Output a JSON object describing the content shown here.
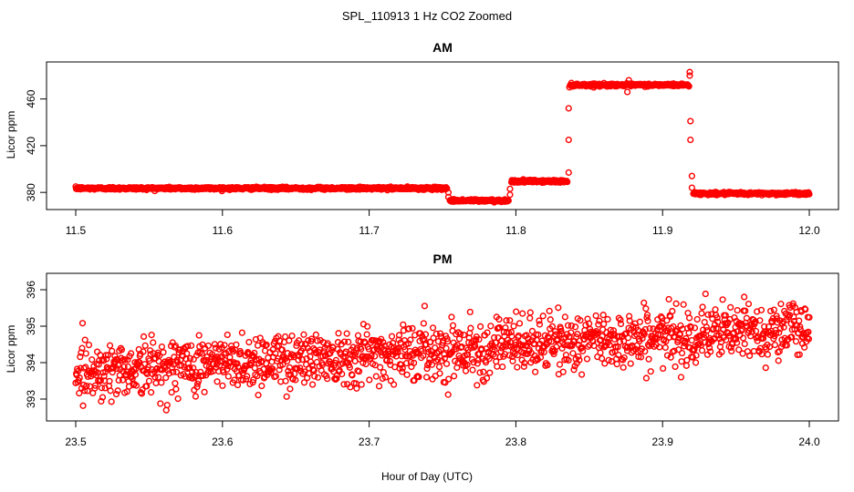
{
  "chart_data": {
    "title": "SPL_110913  1 Hz CO2 Zoomed",
    "xlabel": "Hour of Day (UTC)",
    "marker_color": "#ff0000",
    "panels": [
      {
        "type": "scatter",
        "title": "AM",
        "ylabel": "Licor ppm",
        "xlim": [
          11.5,
          12.0
        ],
        "ylim": [
          370,
          487
        ],
        "xticks": [
          11.5,
          11.6,
          11.7,
          11.8,
          11.9,
          12.0
        ],
        "xtick_labels": [
          "11.5",
          "11.6",
          "11.7",
          "11.8",
          "11.9",
          "12.0"
        ],
        "yticks": [
          380,
          420,
          460
        ],
        "ytick_labels": [
          "380",
          "420",
          "460"
        ],
        "segments": [
          {
            "x_start": 11.5,
            "x_end": 11.753,
            "level": 383.5
          },
          {
            "x_start": 11.755,
            "x_end": 11.795,
            "level": 373
          },
          {
            "x_start": 11.797,
            "x_end": 11.835,
            "level": 389.5
          },
          {
            "x_start": 11.837,
            "x_end": 11.918,
            "level": 472
          },
          {
            "x_start": 11.921,
            "x_end": 12.0,
            "level": 379
          }
        ],
        "transitions": [
          {
            "x": 11.754,
            "y": 380
          },
          {
            "x": 11.754,
            "y": 376
          },
          {
            "x": 11.796,
            "y": 378
          },
          {
            "x": 11.796,
            "y": 383
          },
          {
            "x": 11.836,
            "y": 397
          },
          {
            "x": 11.836,
            "y": 425
          },
          {
            "x": 11.836,
            "y": 452
          },
          {
            "x": 11.8365,
            "y": 470
          },
          {
            "x": 11.919,
            "y": 441
          },
          {
            "x": 11.919,
            "y": 425
          },
          {
            "x": 11.92,
            "y": 394
          },
          {
            "x": 11.92,
            "y": 384
          },
          {
            "x": 11.9185,
            "y": 480
          },
          {
            "x": 11.9185,
            "y": 483
          },
          {
            "x": 11.877,
            "y": 476
          },
          {
            "x": 11.876,
            "y": 466
          }
        ]
      },
      {
        "type": "scatter",
        "title": "PM",
        "ylabel": "Licor ppm",
        "xlim": [
          23.5,
          24.0
        ],
        "ylim": [
          392.55,
          396.3
        ],
        "xticks": [
          23.5,
          23.6,
          23.7,
          23.8,
          23.9,
          24.0
        ],
        "xtick_labels": [
          "23.5",
          "23.6",
          "23.7",
          "23.8",
          "23.9",
          "24.0"
        ],
        "yticks": [
          393,
          394,
          395,
          396
        ],
        "ytick_labels": [
          "393",
          "394",
          "395",
          "396"
        ],
        "trend": {
          "start_level": 393.75,
          "end_level": 394.95,
          "spread": 0.55
        },
        "n_points": 1500
      }
    ]
  }
}
